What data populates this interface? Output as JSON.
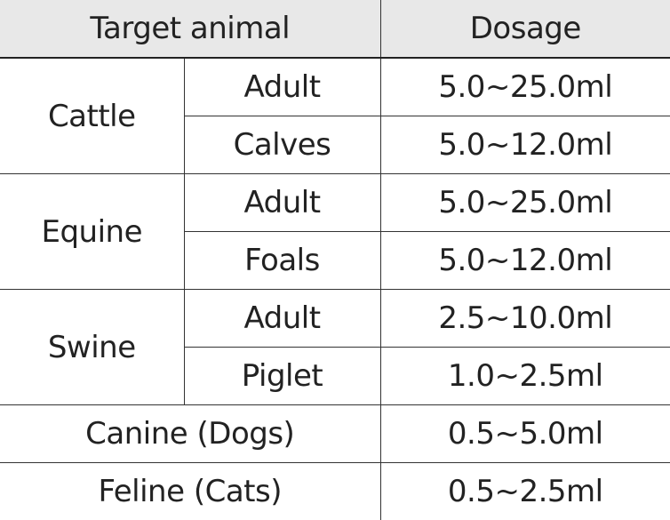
{
  "header": {
    "target_animal": "Target animal",
    "dosage": "Dosage"
  },
  "groups": [
    {
      "animal": "Cattle",
      "rows": [
        {
          "sub": "Adult",
          "dosage": "5.0~25.0ml"
        },
        {
          "sub": "Calves",
          "dosage": "5.0~12.0ml"
        }
      ]
    },
    {
      "animal": "Equine",
      "rows": [
        {
          "sub": "Adult",
          "dosage": "5.0~25.0ml"
        },
        {
          "sub": "Foals",
          "dosage": "5.0~12.0ml"
        }
      ]
    },
    {
      "animal": "Swine",
      "rows": [
        {
          "sub": "Adult",
          "dosage": "2.5~10.0ml"
        },
        {
          "sub": "Piglet",
          "dosage": "1.0~2.5ml"
        }
      ]
    }
  ],
  "singles": [
    {
      "animal": "Canine (Dogs)",
      "dosage": "0.5~5.0ml"
    },
    {
      "animal": "Feline (Cats)",
      "dosage": "0.5~2.5ml"
    }
  ]
}
